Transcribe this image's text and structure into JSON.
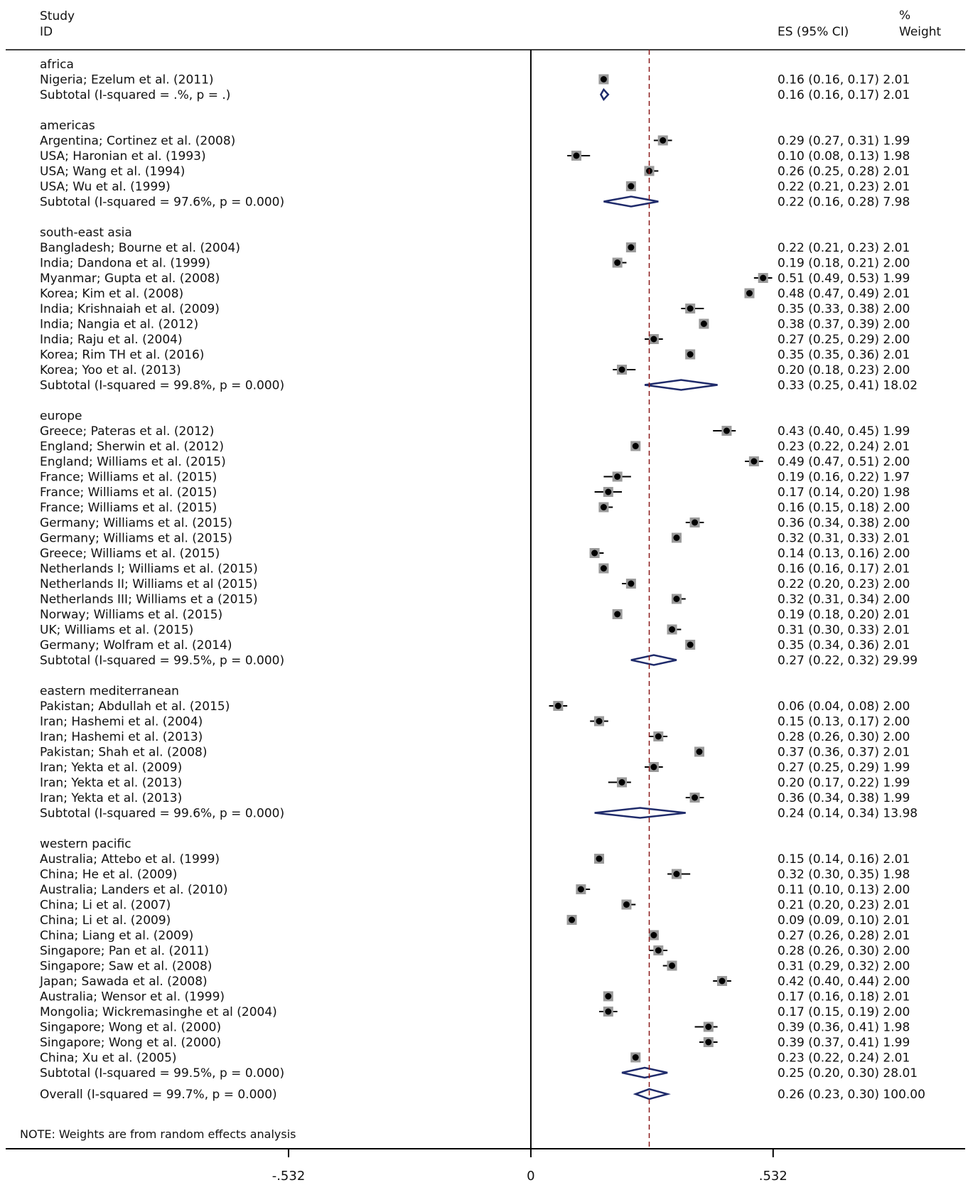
{
  "chart_data": {
    "type": "forest",
    "header": {
      "study": "Study",
      "id": "ID",
      "es": "ES (95% CI)",
      "pct": "%",
      "weight": "Weight"
    },
    "x_axis": {
      "ticks": [
        -0.532,
        0,
        0.532
      ],
      "tick_labels": [
        "-.532",
        "0",
        ".532"
      ],
      "range": [
        -1.15,
        0.91
      ]
    },
    "overall_line": 0.26,
    "colors": {
      "marker": "#000000",
      "weight_box": "#9a9a9a",
      "diamond": "#1f2b6b",
      "overall_line": "#8b1a1a"
    },
    "groups": [
      {
        "name": "africa",
        "studies": [
          {
            "label": "Nigeria; Ezelum et al. (2011)",
            "es": 0.16,
            "lo": 0.16,
            "hi": 0.17,
            "text": "0.16 (0.16, 0.17) 2.01"
          }
        ],
        "subtotal": {
          "label": "Subtotal  (I-squared = .%, p = .)",
          "es": 0.16,
          "lo": 0.16,
          "hi": 0.17,
          "text": "0.16 (0.16, 0.17) 2.01"
        }
      },
      {
        "name": "americas",
        "studies": [
          {
            "label": "Argentina; Cortinez et al. (2008)",
            "es": 0.29,
            "lo": 0.27,
            "hi": 0.31,
            "text": "0.29 (0.27, 0.31) 1.99"
          },
          {
            "label": "USA; Haronian et al. (1993)",
            "es": 0.1,
            "lo": 0.08,
            "hi": 0.13,
            "text": "0.10 (0.08, 0.13) 1.98"
          },
          {
            "label": "USA; Wang et al. (1994)",
            "es": 0.26,
            "lo": 0.25,
            "hi": 0.28,
            "text": "0.26 (0.25, 0.28) 2.01"
          },
          {
            "label": "USA; Wu et al. (1999)",
            "es": 0.22,
            "lo": 0.21,
            "hi": 0.23,
            "text": "0.22 (0.21, 0.23) 2.01"
          }
        ],
        "subtotal": {
          "label": "Subtotal  (I-squared = 97.6%, p = 0.000)",
          "es": 0.22,
          "lo": 0.16,
          "hi": 0.28,
          "text": "0.22 (0.16, 0.28) 7.98"
        }
      },
      {
        "name": "south-east asia",
        "studies": [
          {
            "label": "Bangladesh; Bourne et al. (2004)",
            "es": 0.22,
            "lo": 0.21,
            "hi": 0.23,
            "text": "0.22 (0.21, 0.23) 2.01"
          },
          {
            "label": "India; Dandona et al. (1999)",
            "es": 0.19,
            "lo": 0.18,
            "hi": 0.21,
            "text": "0.19 (0.18, 0.21) 2.00"
          },
          {
            "label": "Myanmar; Gupta et al. (2008)",
            "es": 0.51,
            "lo": 0.49,
            "hi": 0.53,
            "text": "0.51 (0.49, 0.53) 1.99"
          },
          {
            "label": "Korea; Kim et al. (2008)",
            "es": 0.48,
            "lo": 0.47,
            "hi": 0.49,
            "text": "0.48 (0.47, 0.49) 2.01"
          },
          {
            "label": "India; Krishnaiah et al. (2009)",
            "es": 0.35,
            "lo": 0.33,
            "hi": 0.38,
            "text": "0.35 (0.33, 0.38) 2.00"
          },
          {
            "label": "India; Nangia et al. (2012)",
            "es": 0.38,
            "lo": 0.37,
            "hi": 0.39,
            "text": "0.38 (0.37, 0.39) 2.00"
          },
          {
            "label": "India; Raju et al. (2004)",
            "es": 0.27,
            "lo": 0.25,
            "hi": 0.29,
            "text": "0.27 (0.25, 0.29) 2.00"
          },
          {
            "label": "Korea; Rim TH et al. (2016)",
            "es": 0.35,
            "lo": 0.35,
            "hi": 0.36,
            "text": "0.35 (0.35, 0.36) 2.01"
          },
          {
            "label": "Korea; Yoo et al. (2013)",
            "es": 0.2,
            "lo": 0.18,
            "hi": 0.23,
            "text": "0.20 (0.18, 0.23) 2.00"
          }
        ],
        "subtotal": {
          "label": "Subtotal  (I-squared = 99.8%, p = 0.000)",
          "es": 0.33,
          "lo": 0.25,
          "hi": 0.41,
          "text": "0.33 (0.25, 0.41) 18.02"
        }
      },
      {
        "name": "europe",
        "studies": [
          {
            "label": "Greece; Pateras et al. (2012)",
            "es": 0.43,
            "lo": 0.4,
            "hi": 0.45,
            "text": "0.43 (0.40, 0.45) 1.99"
          },
          {
            "label": "England; Sherwin et al. (2012)",
            "es": 0.23,
            "lo": 0.22,
            "hi": 0.24,
            "text": "0.23 (0.22, 0.24) 2.01"
          },
          {
            "label": "England; Williams et al. (2015)",
            "es": 0.49,
            "lo": 0.47,
            "hi": 0.51,
            "text": "0.49 (0.47, 0.51) 2.00"
          },
          {
            "label": "France; Williams et al. (2015)",
            "es": 0.19,
            "lo": 0.16,
            "hi": 0.22,
            "text": "0.19 (0.16, 0.22) 1.97"
          },
          {
            "label": "France; Williams et al. (2015)",
            "es": 0.17,
            "lo": 0.14,
            "hi": 0.2,
            "text": "0.17 (0.14, 0.20) 1.98"
          },
          {
            "label": "France; Williams et al. (2015)",
            "es": 0.16,
            "lo": 0.15,
            "hi": 0.18,
            "text": "0.16 (0.15, 0.18) 2.00"
          },
          {
            "label": "Germany; Williams et al. (2015)",
            "es": 0.36,
            "lo": 0.34,
            "hi": 0.38,
            "text": "0.36 (0.34, 0.38) 2.00"
          },
          {
            "label": "Germany; Williams et al. (2015)",
            "es": 0.32,
            "lo": 0.31,
            "hi": 0.33,
            "text": "0.32 (0.31, 0.33) 2.01"
          },
          {
            "label": "Greece; Williams et al. (2015)",
            "es": 0.14,
            "lo": 0.13,
            "hi": 0.16,
            "text": "0.14 (0.13, 0.16) 2.00"
          },
          {
            "label": "Netherlands I; Williams et al. (2015)",
            "es": 0.16,
            "lo": 0.16,
            "hi": 0.17,
            "text": "0.16 (0.16, 0.17) 2.01"
          },
          {
            "label": "Netherlands II; Williams et al (2015)",
            "es": 0.22,
            "lo": 0.2,
            "hi": 0.23,
            "text": "0.22 (0.20, 0.23) 2.00"
          },
          {
            "label": "Netherlands III; Williams et a (2015)",
            "es": 0.32,
            "lo": 0.31,
            "hi": 0.34,
            "text": "0.32 (0.31, 0.34) 2.00"
          },
          {
            "label": "Norway; Williams et al. (2015)",
            "es": 0.19,
            "lo": 0.18,
            "hi": 0.2,
            "text": "0.19 (0.18, 0.20) 2.01"
          },
          {
            "label": "UK; Williams et al. (2015)",
            "es": 0.31,
            "lo": 0.3,
            "hi": 0.33,
            "text": "0.31 (0.30, 0.33) 2.01"
          },
          {
            "label": "Germany; Wolfram et al. (2014)",
            "es": 0.35,
            "lo": 0.34,
            "hi": 0.36,
            "text": "0.35 (0.34, 0.36) 2.01"
          }
        ],
        "subtotal": {
          "label": "Subtotal  (I-squared = 99.5%, p = 0.000)",
          "es": 0.27,
          "lo": 0.22,
          "hi": 0.32,
          "text": "0.27 (0.22, 0.32) 29.99"
        }
      },
      {
        "name": "eastern mediterranean",
        "studies": [
          {
            "label": "Pakistan; Abdullah et al. (2015)",
            "es": 0.06,
            "lo": 0.04,
            "hi": 0.08,
            "text": "0.06 (0.04, 0.08) 2.00"
          },
          {
            "label": "Iran; Hashemi et al. (2004)",
            "es": 0.15,
            "lo": 0.13,
            "hi": 0.17,
            "text": "0.15 (0.13, 0.17) 2.00"
          },
          {
            "label": "Iran; Hashemi et al. (2013)",
            "es": 0.28,
            "lo": 0.26,
            "hi": 0.3,
            "text": "0.28 (0.26, 0.30) 2.00"
          },
          {
            "label": "Pakistan; Shah et al. (2008)",
            "es": 0.37,
            "lo": 0.36,
            "hi": 0.37,
            "text": "0.37 (0.36, 0.37) 2.01"
          },
          {
            "label": "Iran; Yekta et al. (2009)",
            "es": 0.27,
            "lo": 0.25,
            "hi": 0.29,
            "text": "0.27 (0.25, 0.29) 1.99"
          },
          {
            "label": "Iran; Yekta et al. (2013)",
            "es": 0.2,
            "lo": 0.17,
            "hi": 0.22,
            "text": "0.20 (0.17, 0.22) 1.99"
          },
          {
            "label": "Iran; Yekta et al. (2013)",
            "es": 0.36,
            "lo": 0.34,
            "hi": 0.38,
            "text": "0.36 (0.34, 0.38) 1.99"
          }
        ],
        "subtotal": {
          "label": "Subtotal  (I-squared = 99.6%, p = 0.000)",
          "es": 0.24,
          "lo": 0.14,
          "hi": 0.34,
          "text": "0.24 (0.14, 0.34) 13.98"
        }
      },
      {
        "name": "western pacific",
        "studies": [
          {
            "label": "Australia; Attebo et al. (1999)",
            "es": 0.15,
            "lo": 0.14,
            "hi": 0.16,
            "text": "0.15 (0.14, 0.16) 2.01"
          },
          {
            "label": "China; He et al. (2009)",
            "es": 0.32,
            "lo": 0.3,
            "hi": 0.35,
            "text": "0.32 (0.30, 0.35) 1.98"
          },
          {
            "label": "Australia; Landers et al. (2010)",
            "es": 0.11,
            "lo": 0.1,
            "hi": 0.13,
            "text": "0.11 (0.10, 0.13) 2.00"
          },
          {
            "label": "China; Li et al. (2007)",
            "es": 0.21,
            "lo": 0.2,
            "hi": 0.23,
            "text": "0.21 (0.20, 0.23) 2.01"
          },
          {
            "label": "China; Li et al. (2009)",
            "es": 0.09,
            "lo": 0.09,
            "hi": 0.1,
            "text": "0.09 (0.09, 0.10) 2.01"
          },
          {
            "label": "China; Liang et al. (2009)",
            "es": 0.27,
            "lo": 0.26,
            "hi": 0.28,
            "text": "0.27 (0.26, 0.28) 2.01"
          },
          {
            "label": "Singapore; Pan et al. (2011)",
            "es": 0.28,
            "lo": 0.26,
            "hi": 0.3,
            "text": "0.28 (0.26, 0.30) 2.00"
          },
          {
            "label": "Singapore; Saw et al. (2008)",
            "es": 0.31,
            "lo": 0.29,
            "hi": 0.32,
            "text": "0.31 (0.29, 0.32) 2.00"
          },
          {
            "label": "Japan; Sawada et al. (2008)",
            "es": 0.42,
            "lo": 0.4,
            "hi": 0.44,
            "text": "0.42 (0.40, 0.44) 2.00"
          },
          {
            "label": "Australia; Wensor et al. (1999)",
            "es": 0.17,
            "lo": 0.16,
            "hi": 0.18,
            "text": "0.17 (0.16, 0.18) 2.01"
          },
          {
            "label": "Mongolia; Wickremasinghe et al (2004)",
            "es": 0.17,
            "lo": 0.15,
            "hi": 0.19,
            "text": "0.17 (0.15, 0.19) 2.00"
          },
          {
            "label": "Singapore; Wong et al. (2000)",
            "es": 0.39,
            "lo": 0.36,
            "hi": 0.41,
            "text": "0.39 (0.36, 0.41) 1.98"
          },
          {
            "label": "Singapore; Wong et al. (2000)",
            "es": 0.39,
            "lo": 0.37,
            "hi": 0.41,
            "text": "0.39 (0.37, 0.41) 1.99"
          },
          {
            "label": "China; Xu et al. (2005)",
            "es": 0.23,
            "lo": 0.22,
            "hi": 0.24,
            "text": "0.23 (0.22, 0.24) 2.01"
          }
        ],
        "subtotal": {
          "label": "Subtotal  (I-squared = 99.5%, p = 0.000)",
          "es": 0.25,
          "lo": 0.2,
          "hi": 0.3,
          "text": "0.25 (0.20, 0.30) 28.01"
        }
      }
    ],
    "overall": {
      "label": "Overall  (I-squared = 99.7%, p = 0.000)",
      "es": 0.26,
      "lo": 0.23,
      "hi": 0.3,
      "text": "0.26 (0.23, 0.30) 100.00"
    },
    "note": "NOTE: Weights are from random effects analysis"
  }
}
